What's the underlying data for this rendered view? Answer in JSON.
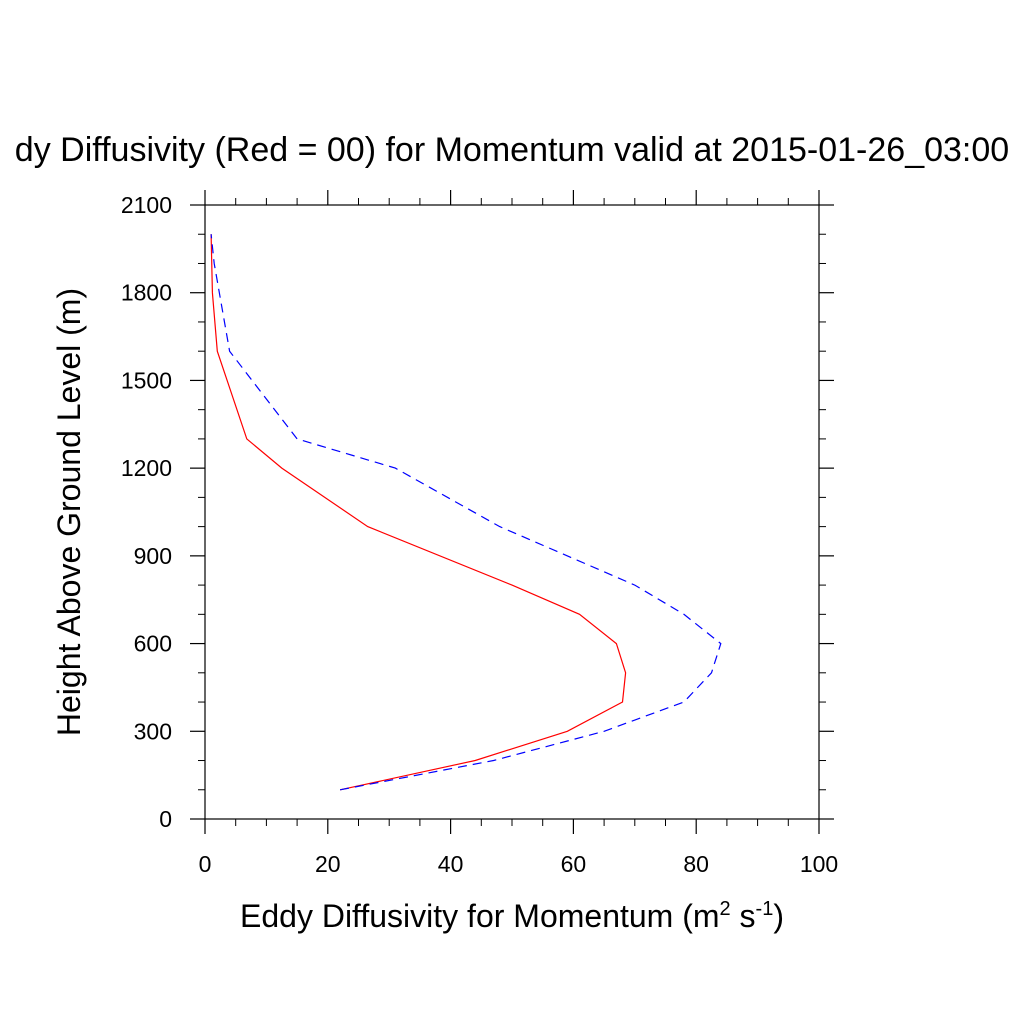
{
  "chart_data": {
    "type": "line",
    "title": "dy Diffusivity (Red = 00) for Momentum valid at 2015-01-26_03:00",
    "xlabel": {
      "main": "Eddy Diffusivity for Momentum (m",
      "sup1": "2",
      "mid": " s",
      "sup2": "-1",
      "end": ")"
    },
    "ylabel": "Height Above Ground Level (m)",
    "xlim": [
      0,
      100
    ],
    "ylim": [
      0,
      2100
    ],
    "x_ticks": [
      0,
      20,
      40,
      60,
      80,
      100
    ],
    "y_ticks": [
      0,
      300,
      600,
      900,
      1200,
      1500,
      1800,
      2100
    ],
    "x_tick_labels": [
      "0",
      "20",
      "40",
      "60",
      "80",
      "100"
    ],
    "y_tick_labels": [
      "0",
      "300",
      "600",
      "900",
      "1200",
      "1500",
      "1800",
      "2100"
    ],
    "grid": false,
    "series": [
      {
        "color": "#ff0000",
        "style": "solid",
        "points": [
          [
            22,
            100
          ],
          [
            44,
            200
          ],
          [
            59,
            300
          ],
          [
            68,
            400
          ],
          [
            68.5,
            500
          ],
          [
            67,
            600
          ],
          [
            61,
            700
          ],
          [
            50,
            800
          ],
          [
            26.5,
            1000
          ],
          [
            12.5,
            1200
          ],
          [
            6.8,
            1300
          ],
          [
            2,
            1600
          ],
          [
            1.2,
            1800
          ],
          [
            1,
            2000
          ]
        ]
      },
      {
        "color": "#0000ff",
        "style": "dashed",
        "points": [
          [
            22,
            100
          ],
          [
            47,
            200
          ],
          [
            65,
            300
          ],
          [
            78,
            400
          ],
          [
            82.5,
            500
          ],
          [
            84,
            600
          ],
          [
            78,
            700
          ],
          [
            70,
            800
          ],
          [
            48,
            1000
          ],
          [
            31,
            1200
          ],
          [
            15,
            1300
          ],
          [
            4,
            1600
          ],
          [
            1.5,
            1900
          ],
          [
            1,
            2000
          ]
        ]
      }
    ]
  }
}
